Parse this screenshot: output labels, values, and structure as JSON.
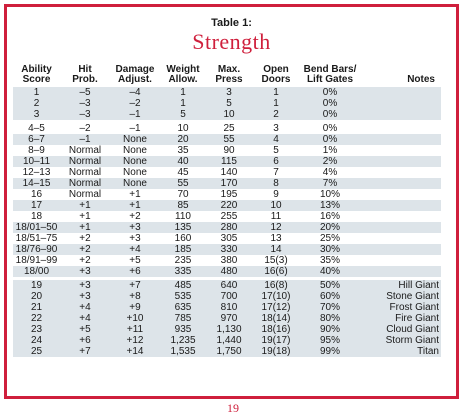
{
  "table_label": "Table 1:",
  "table_title": "Strength",
  "page_number": "19",
  "colors": {
    "border": "#cf1f3c",
    "title": "#cf1f3c",
    "row_shading": "#dde4e9"
  },
  "headers": [
    [
      "Ability",
      "Score"
    ],
    [
      "Hit",
      "Prob."
    ],
    [
      "Damage",
      "Adjust."
    ],
    [
      "Weight",
      "Allow."
    ],
    [
      "Max.",
      "Press"
    ],
    [
      "Open",
      "Doors"
    ],
    [
      "Bend Bars/",
      "Lift Gates"
    ],
    [
      "",
      "Notes"
    ]
  ],
  "rows": [
    [
      "1",
      "–5",
      "–4",
      "1",
      "3",
      "1",
      "0%",
      ""
    ],
    [
      "2",
      "–3",
      "–2",
      "1",
      "5",
      "1",
      "0%",
      ""
    ],
    [
      "3",
      "–3",
      "–1",
      "5",
      "10",
      "2",
      "0%",
      ""
    ],
    [
      "4–5",
      "–2",
      "–1",
      "10",
      "25",
      "3",
      "0%",
      ""
    ],
    [
      "6–7",
      "–1",
      "None",
      "20",
      "55",
      "4",
      "0%",
      ""
    ],
    [
      "8–9",
      "Normal",
      "None",
      "35",
      "90",
      "5",
      "1%",
      ""
    ],
    [
      "10–11",
      "Normal",
      "None",
      "40",
      "115",
      "6",
      "2%",
      ""
    ],
    [
      "12–13",
      "Normal",
      "None",
      "45",
      "140",
      "7",
      "4%",
      ""
    ],
    [
      "14–15",
      "Normal",
      "None",
      "55",
      "170",
      "8",
      "7%",
      ""
    ],
    [
      "16",
      "Normal",
      "+1",
      "70",
      "195",
      "9",
      "10%",
      ""
    ],
    [
      "17",
      "+1",
      "+1",
      "85",
      "220",
      "10",
      "13%",
      ""
    ],
    [
      "18",
      "+1",
      "+2",
      "110",
      "255",
      "11",
      "16%",
      ""
    ],
    [
      "18/01–50",
      "+1",
      "+3",
      "135",
      "280",
      "12",
      "20%",
      ""
    ],
    [
      "18/51–75",
      "+2",
      "+3",
      "160",
      "305",
      "13",
      "25%",
      ""
    ],
    [
      "18/76–90",
      "+2",
      "+4",
      "185",
      "330",
      "14",
      "30%",
      ""
    ],
    [
      "18/91–99",
      "+2",
      "+5",
      "235",
      "380",
      "15(3)",
      "35%",
      ""
    ],
    [
      "18/00",
      "+3",
      "+6",
      "335",
      "480",
      "16(6)",
      "40%",
      ""
    ],
    [
      "19",
      "+3",
      "+7",
      "485",
      "640",
      "16(8)",
      "50%",
      "Hill Giant"
    ],
    [
      "20",
      "+3",
      "+8",
      "535",
      "700",
      "17(10)",
      "60%",
      "Stone Giant"
    ],
    [
      "21",
      "+4",
      "+9",
      "635",
      "810",
      "17(12)",
      "70%",
      "Frost Giant"
    ],
    [
      "22",
      "+4",
      "+10",
      "785",
      "970",
      "18(14)",
      "80%",
      "Fire Giant"
    ],
    [
      "23",
      "+5",
      "+11",
      "935",
      "1,130",
      "18(16)",
      "90%",
      "Cloud Giant"
    ],
    [
      "24",
      "+6",
      "+12",
      "1,235",
      "1,440",
      "19(17)",
      "95%",
      "Storm Giant"
    ],
    [
      "25",
      "+7",
      "+14",
      "1,535",
      "1,750",
      "19(18)",
      "99%",
      "Titan"
    ]
  ]
}
